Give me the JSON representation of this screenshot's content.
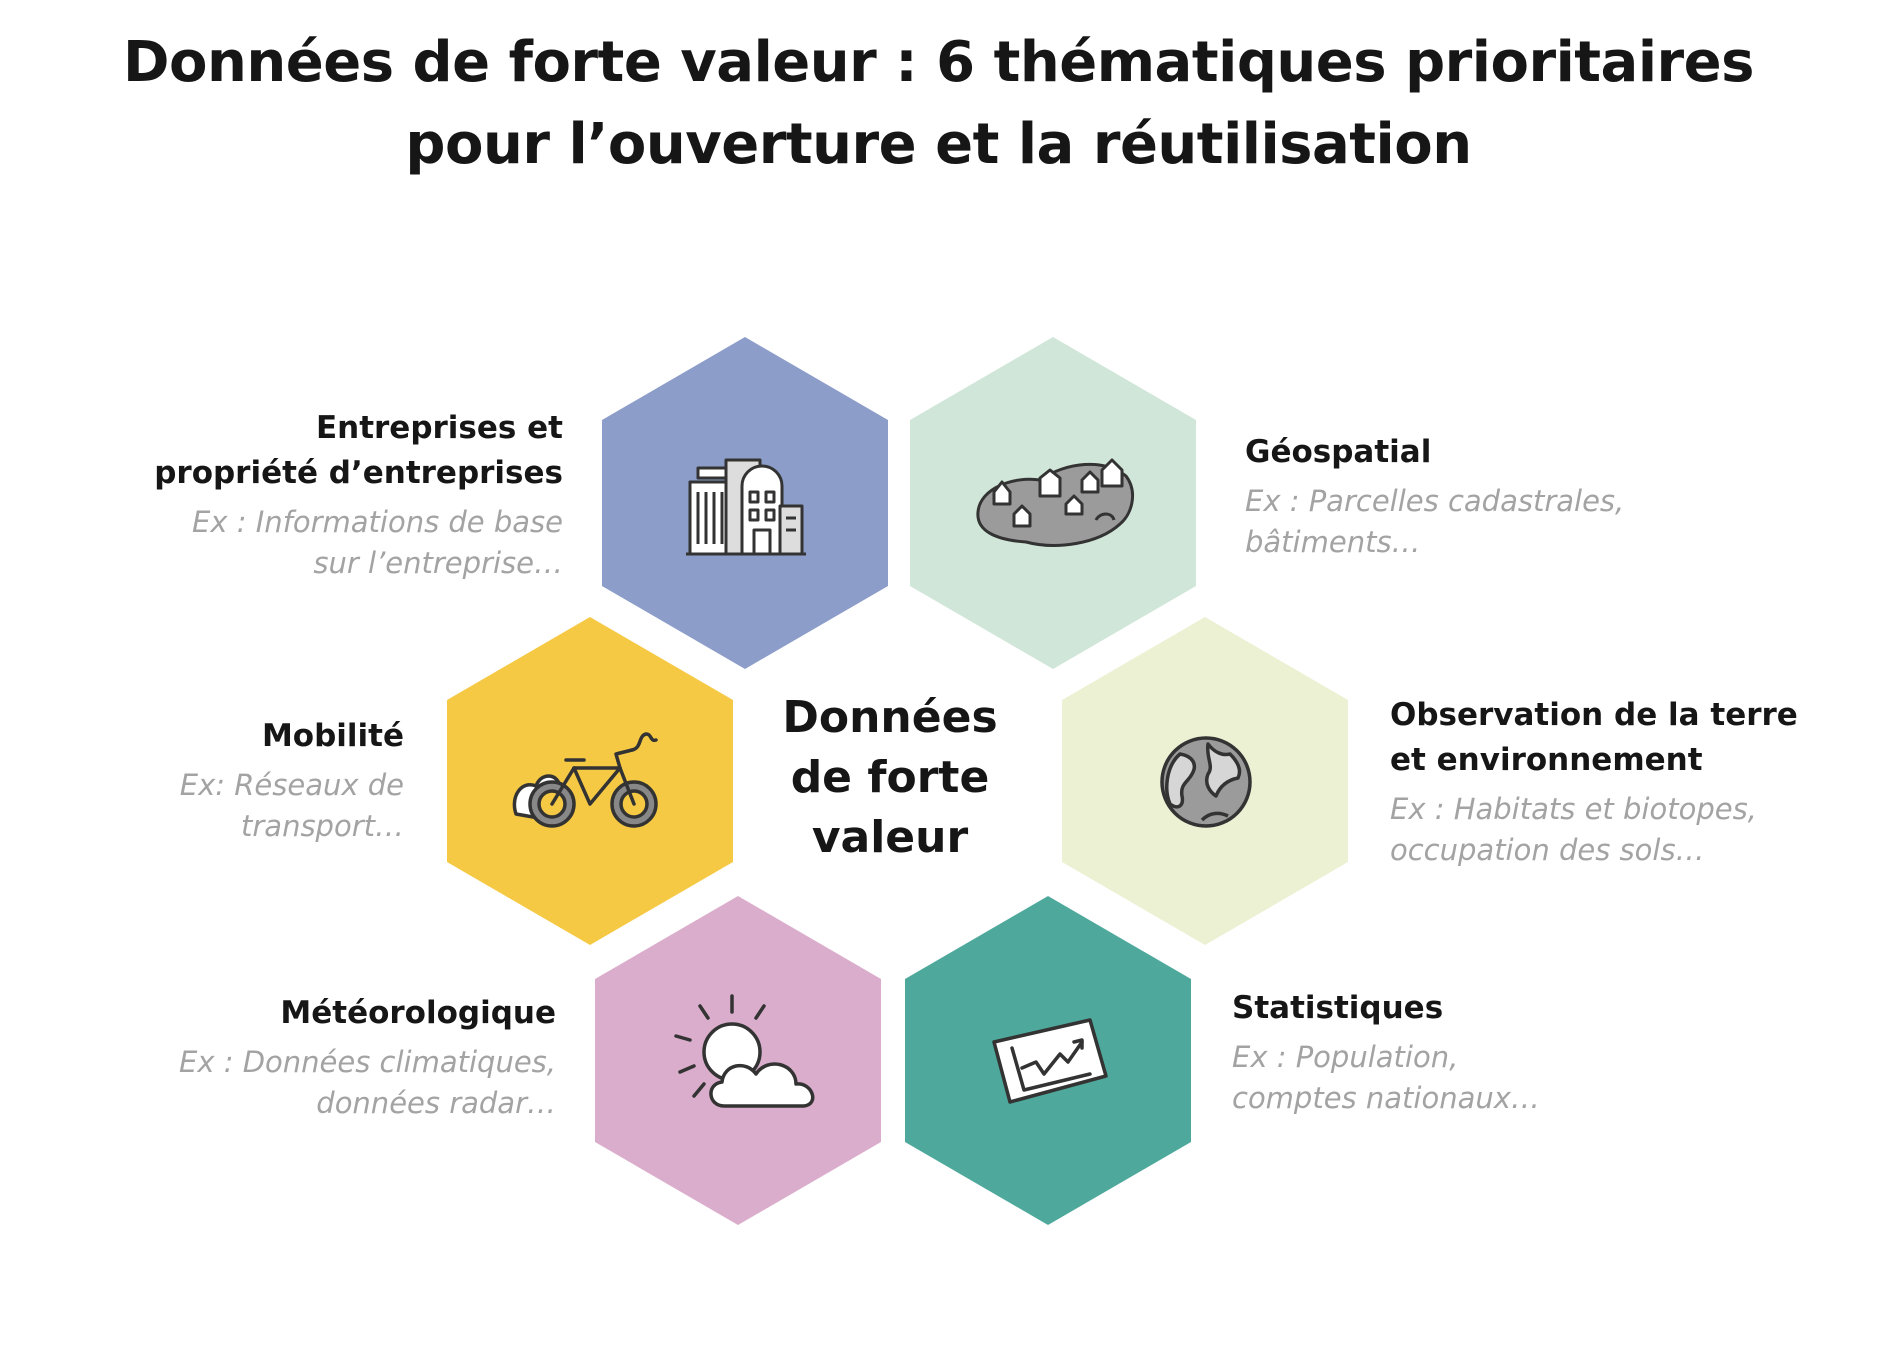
{
  "title": {
    "line1": "Données de forte valeur : 6 thématiques prioritaires",
    "line2": "pour l’ouverture et la réutilisation"
  },
  "center": {
    "line1": "Données",
    "line2": "de forte",
    "line3": "valeur"
  },
  "themes": [
    {
      "title_lines": [
        "Entreprises et",
        "propriété d’entreprises"
      ],
      "example_lines": [
        "Ex : Informations de base",
        "sur l’entreprise…"
      ],
      "color": "#8c9dc9",
      "icon": "buildings-icon"
    },
    {
      "title_lines": [
        "Géospatial"
      ],
      "example_lines": [
        "Ex : Parcelles cadastrales,",
        "bâtiments…"
      ],
      "color": "#d0e6d8",
      "icon": "map-houses-icon"
    },
    {
      "title_lines": [
        "Mobilité"
      ],
      "example_lines": [
        "Ex: Réseaux de",
        "transport…"
      ],
      "color": "#f5c944",
      "icon": "bicycle-icon"
    },
    {
      "title_lines": [
        "Observation de la terre",
        "et environnement"
      ],
      "example_lines": [
        "Ex : Habitats et biotopes,",
        "occupation des sols…"
      ],
      "color": "#ecf1d3",
      "icon": "globe-icon"
    },
    {
      "title_lines": [
        "Météorologique"
      ],
      "example_lines": [
        "Ex : Données climatiques,",
        "données radar…"
      ],
      "color": "#dbadcc",
      "icon": "sun-cloud-icon"
    },
    {
      "title_lines": [
        "Statistiques"
      ],
      "example_lines": [
        "Ex : Population,",
        "comptes nationaux…"
      ],
      "color": "#4ea99c",
      "icon": "line-chart-icon"
    }
  ]
}
